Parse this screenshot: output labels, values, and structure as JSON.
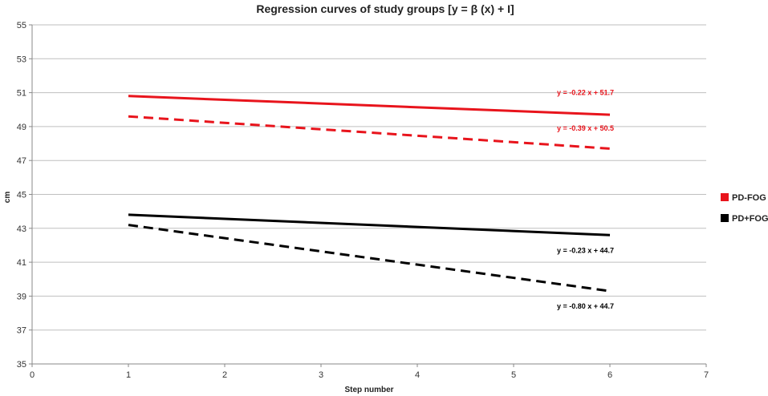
{
  "chart_data": {
    "type": "line",
    "title": "Regression curves of study groups [y = β (x) + I]",
    "xlabel": "Step number",
    "ylabel": "cm",
    "xlim": [
      0,
      7
    ],
    "ylim": [
      35,
      55
    ],
    "x_ticks": [
      0,
      1,
      2,
      3,
      4,
      5,
      6,
      7
    ],
    "y_ticks": [
      35,
      37,
      39,
      41,
      43,
      45,
      47,
      49,
      51,
      53,
      55
    ],
    "grid": "horizontal",
    "legend_position": "right",
    "legend": [
      {
        "label": "PD-FOG",
        "color": "#e8141c"
      },
      {
        "label": "PD+FOG",
        "color": "#000000"
      }
    ],
    "series": [
      {
        "name": "PD-FOG solid",
        "group": "PD-FOG",
        "style": "solid",
        "color": "#e8141c",
        "x": [
          1,
          6
        ],
        "y": [
          50.8,
          49.7
        ],
        "equation": "y = -0.22 x + 51.7",
        "label_at": [
          6,
          51.0
        ]
      },
      {
        "name": "PD-FOG dashed",
        "group": "PD-FOG",
        "style": "dashed",
        "color": "#e8141c",
        "x": [
          1,
          6
        ],
        "y": [
          49.6,
          47.7
        ],
        "equation": "y = -0.39 x + 50.5",
        "label_at": [
          6,
          48.9
        ]
      },
      {
        "name": "PD+FOG solid",
        "group": "PD+FOG",
        "style": "solid",
        "color": "#000000",
        "x": [
          1,
          6
        ],
        "y": [
          43.8,
          42.6
        ],
        "equation": "y = -0.23 x + 44.7",
        "label_at": [
          6,
          41.7
        ]
      },
      {
        "name": "PD+FOG dashed",
        "group": "PD+FOG",
        "style": "dashed",
        "color": "#000000",
        "x": [
          1,
          6
        ],
        "y": [
          43.2,
          39.3
        ],
        "equation": "y = -0.80 x + 44.7",
        "label_at": [
          6,
          38.4
        ]
      }
    ]
  }
}
